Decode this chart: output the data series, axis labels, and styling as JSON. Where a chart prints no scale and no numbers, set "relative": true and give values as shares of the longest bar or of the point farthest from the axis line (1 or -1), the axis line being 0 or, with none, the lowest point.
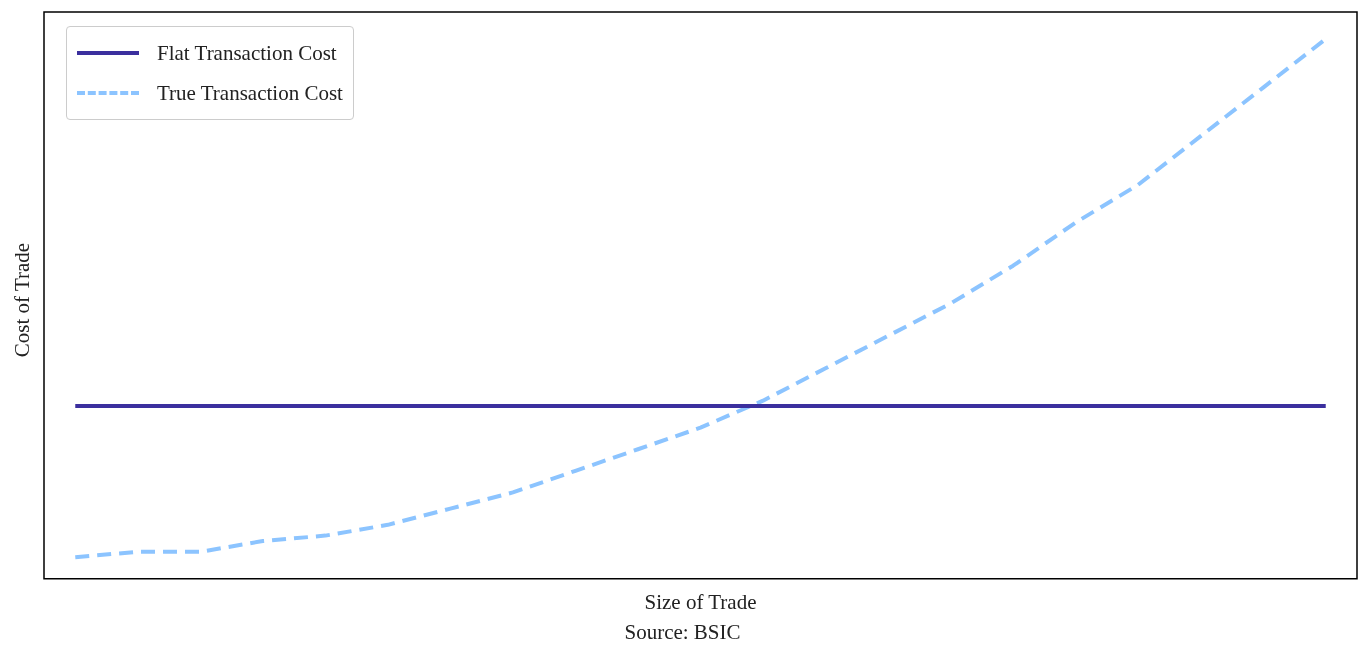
{
  "chart_data": {
    "type": "line",
    "relative": true,
    "xlabel": "Size of Trade",
    "ylabel": "Cost of Trade",
    "annotations": [
      "Source: BSIC"
    ],
    "legend": "top left",
    "marker": "none",
    "categories": [
      null,
      null,
      null,
      null,
      null,
      null,
      null,
      null,
      null,
      null,
      null,
      null,
      null,
      null,
      null,
      null,
      null,
      null,
      null,
      null,
      null
    ],
    "series": [
      {
        "name": "Flat Transaction Cost",
        "color": "#3b2f9e",
        "line_style": "solid",
        "values": [
          0.32,
          0.32,
          0.32,
          0.32,
          0.32,
          0.32,
          0.32,
          0.32,
          0.32,
          0.32,
          0.32,
          0.32,
          0.32,
          0.32,
          0.32,
          0.32,
          0.32,
          0.32,
          0.32,
          0.32,
          0.32
        ]
      },
      {
        "name": "True Transaction Cost",
        "color": "#8cc4ff",
        "line_style": "dashed",
        "values": [
          0.04,
          0.05,
          0.05,
          0.07,
          0.08,
          0.1,
          0.13,
          0.16,
          0.2,
          0.24,
          0.28,
          0.33,
          0.39,
          0.45,
          0.51,
          0.58,
          0.66,
          0.73,
          0.82,
          0.91,
          1
        ]
      }
    ]
  }
}
